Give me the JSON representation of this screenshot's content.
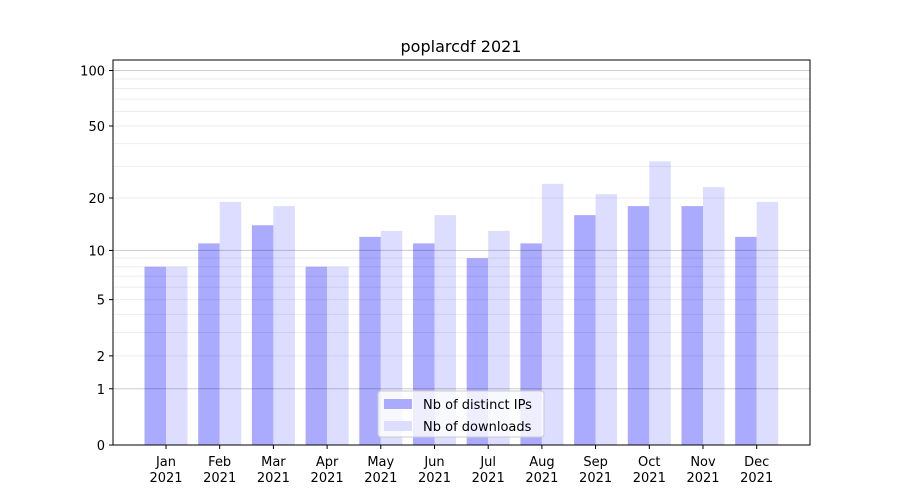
{
  "chart_data": {
    "type": "bar",
    "title": "poplarcdf 2021",
    "xlabel": "",
    "ylabel": "",
    "yscale": "log10(1+y)",
    "ylim": [
      0,
      114
    ],
    "yticks": [
      0,
      1,
      2,
      5,
      10,
      20,
      50,
      100
    ],
    "grid": true,
    "legend_position": "bottom-center",
    "categories": [
      "Jan\n2021",
      "Feb\n2021",
      "Mar\n2021",
      "Apr\n2021",
      "May\n2021",
      "Jun\n2021",
      "Jul\n2021",
      "Aug\n2021",
      "Sep\n2021",
      "Oct\n2021",
      "Nov\n2021",
      "Dec\n2021"
    ],
    "series": [
      {
        "name": "Nb of distinct IPs",
        "color": "#aaaaff",
        "values": [
          8,
          11,
          14,
          8,
          12,
          11,
          9,
          11,
          16,
          18,
          18,
          12
        ]
      },
      {
        "name": "Nb of downloads",
        "color": "#ddddff",
        "values": [
          8,
          19,
          18,
          8,
          13,
          16,
          13,
          24,
          21,
          32,
          23,
          19
        ]
      }
    ]
  }
}
